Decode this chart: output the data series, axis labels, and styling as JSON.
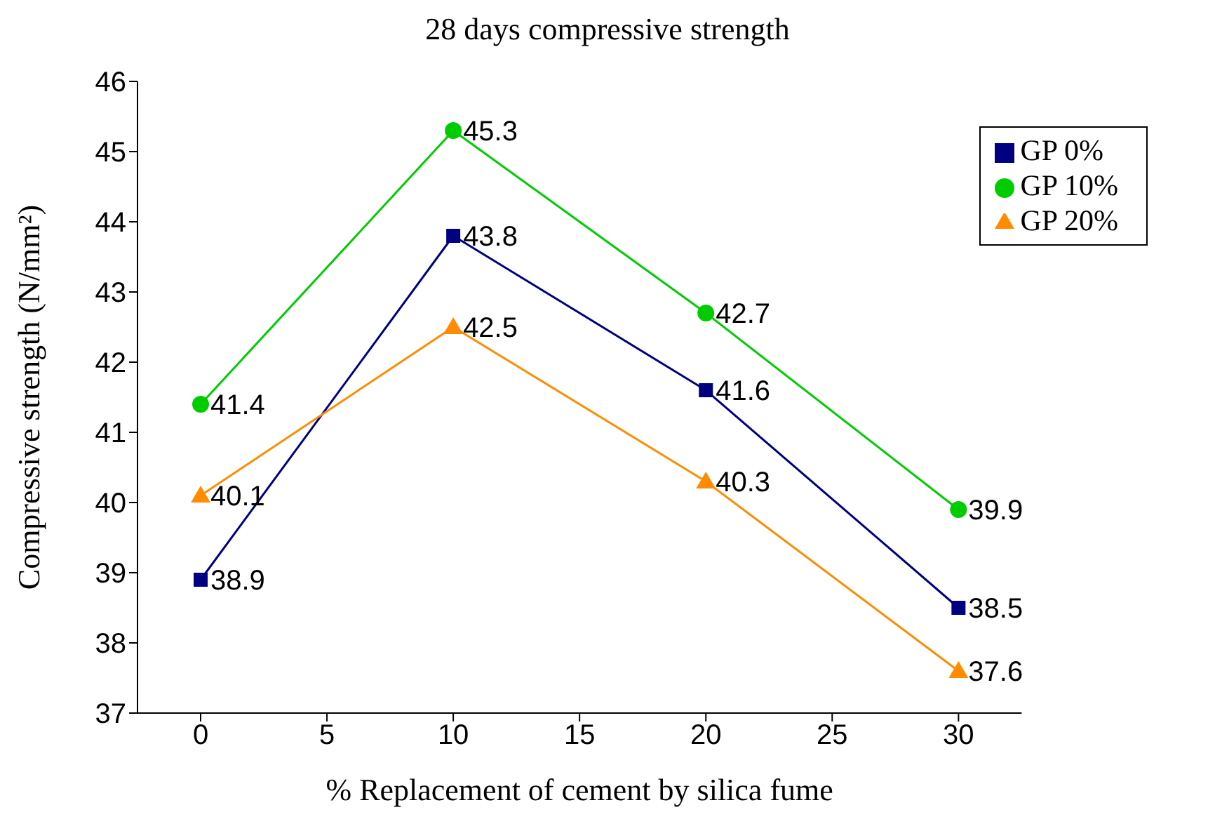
{
  "chart_data": {
    "type": "line",
    "title": "28 days compressive strength",
    "xlabel": "% Replacement of cement by silica fume",
    "ylabel": "Compressive strength (N/mm²)",
    "x": [
      0,
      10,
      20,
      30
    ],
    "series": [
      {
        "name": "GP 0%",
        "color": "#000080",
        "marker": "square",
        "values": [
          38.9,
          43.8,
          41.6,
          38.5
        ]
      },
      {
        "name": "GP 10%",
        "color": "#00cc00",
        "marker": "circle",
        "values": [
          41.4,
          45.3,
          42.7,
          39.9
        ]
      },
      {
        "name": "GP 20%",
        "color": "#ff8c00",
        "marker": "triangle",
        "values": [
          40.1,
          42.5,
          40.3,
          37.6
        ]
      }
    ],
    "xlim": [
      -2.5,
      32.5
    ],
    "xticks": [
      0,
      5,
      10,
      15,
      20,
      25,
      30
    ],
    "ylim": [
      37,
      46
    ],
    "yticks": [
      37,
      38,
      39,
      40,
      41,
      42,
      43,
      44,
      45,
      46
    ],
    "legend": "top right",
    "data_labels": true
  }
}
